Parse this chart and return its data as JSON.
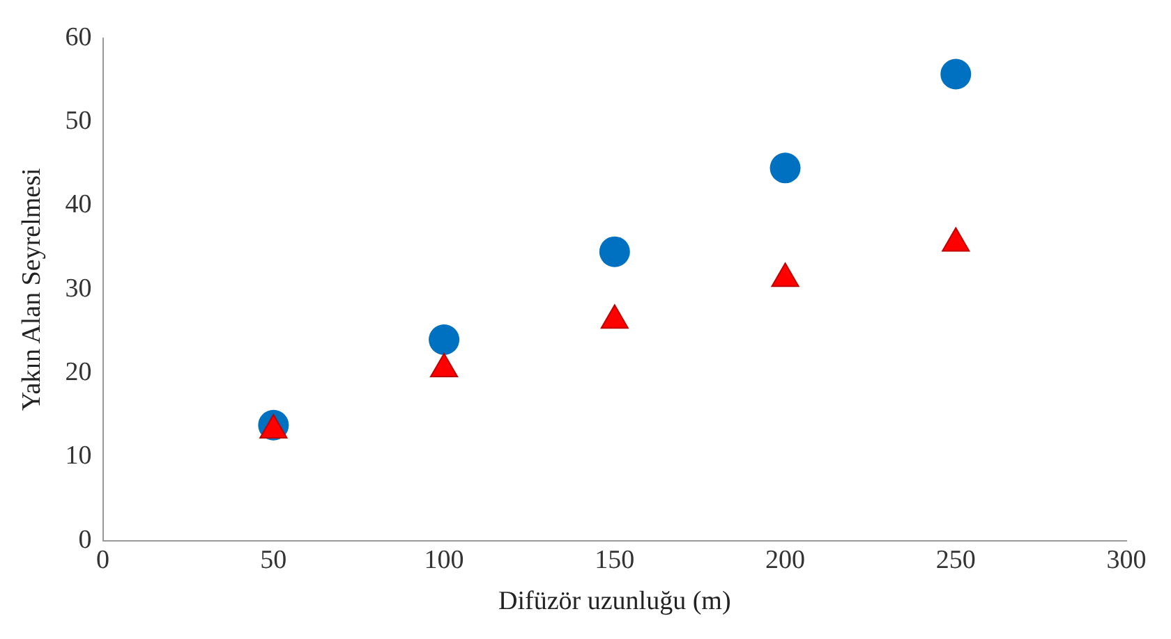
{
  "chart_data": {
    "type": "scatter",
    "xlabel": "Difüzör uzunluğu (m)",
    "ylabel": "Yakın Alan Seyrelmesi",
    "xlim": [
      0,
      300
    ],
    "xticks": [
      0,
      50,
      100,
      150,
      200,
      250,
      300
    ],
    "ylim": [
      0,
      60
    ],
    "yticks": [
      0,
      10,
      20,
      30,
      40,
      50,
      60
    ],
    "grid": false,
    "legend": false,
    "series": [
      {
        "color": "#0070c0",
        "marker": "circle",
        "x": [
          50,
          100,
          150,
          200,
          250
        ],
        "values": [
          13.8,
          24,
          34.5,
          44.5,
          55.7
        ]
      },
      {
        "color": "#ff0000",
        "marker": "triangle",
        "x": [
          50,
          100,
          150,
          200,
          250
        ],
        "values": [
          13.2,
          20.5,
          26.3,
          31.3,
          35.5
        ]
      }
    ]
  }
}
